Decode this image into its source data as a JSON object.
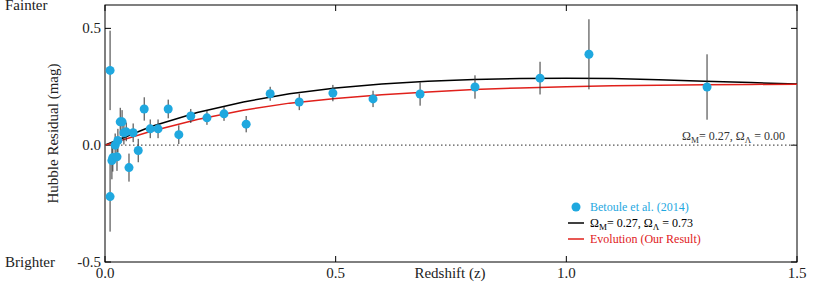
{
  "chart_data": {
    "type": "scatter",
    "x_label": "Redshift (z)",
    "y_label": "Hubble Residual (mag)",
    "annotations": [
      "Fainter",
      "Brighter"
    ],
    "xlim": [
      0,
      1.5
    ],
    "ylim": [
      -0.5,
      0.6
    ],
    "xticks": [
      {
        "value": 0,
        "label": "0.0"
      },
      0.5,
      {
        "value": 1,
        "label": "1.0"
      },
      1.5
    ],
    "yticks": [
      -0.5,
      {
        "value": 0,
        "label": "0.0"
      },
      0.5
    ],
    "grid": false,
    "legend": "lower right",
    "series": [
      {
        "name": "Betoule et al. (2014)",
        "type": "scatter",
        "marker": "circle",
        "color": "#1fa8df",
        "x": [
          0.011,
          0.011,
          0.015,
          0.017,
          0.022,
          0.026,
          0.028,
          0.033,
          0.037,
          0.041,
          0.046,
          0.052,
          0.061,
          0.072,
          0.085,
          0.098,
          0.115,
          0.137,
          0.16,
          0.186,
          0.221,
          0.258,
          0.306,
          0.358,
          0.421,
          0.494,
          0.581,
          0.683,
          0.802,
          0.943,
          1.049,
          1.305
        ],
        "values": [
          0.32,
          -0.22,
          -0.066,
          -0.053,
          0.0,
          -0.05,
          0.02,
          0.1,
          0.1,
          0.053,
          0.057,
          -0.096,
          0.053,
          -0.023,
          0.155,
          0.07,
          0.07,
          0.155,
          0.045,
          0.125,
          0.117,
          0.134,
          0.09,
          0.22,
          0.185,
          0.223,
          0.198,
          0.219,
          0.249,
          0.287,
          0.389,
          0.249
        ],
        "errors": [
          0.17,
          0.15,
          0.08,
          0.06,
          0.05,
          0.06,
          0.05,
          0.06,
          0.05,
          0.05,
          0.04,
          0.06,
          0.04,
          0.05,
          0.05,
          0.04,
          0.04,
          0.04,
          0.04,
          0.03,
          0.03,
          0.03,
          0.035,
          0.03,
          0.035,
          0.035,
          0.035,
          0.05,
          0.05,
          0.07,
          0.15,
          0.14
        ]
      },
      {
        "name": "ΩM= 0.27, ΩΛ = 0.73",
        "type": "line",
        "line_style": "solid",
        "color": "#000000",
        "x": [
          0,
          0.1,
          0.2,
          0.3,
          0.4,
          0.5,
          0.6,
          0.7,
          0.8,
          0.9,
          1.0,
          1.1,
          1.2,
          1.3,
          1.4,
          1.5
        ],
        "values": [
          0,
          0.08,
          0.14,
          0.185,
          0.22,
          0.245,
          0.262,
          0.274,
          0.281,
          0.285,
          0.286,
          0.285,
          0.28,
          0.274,
          0.268,
          0.262
        ]
      },
      {
        "name": "Evolution (Our Result)",
        "type": "line",
        "line_style": "solid",
        "color": "#e0201b",
        "x": [
          0,
          0.1,
          0.2,
          0.3,
          0.4,
          0.5,
          0.6,
          0.7,
          0.8,
          0.9,
          1.0,
          1.1,
          1.2,
          1.3,
          1.4,
          1.5
        ],
        "values": [
          0,
          0.06,
          0.11,
          0.15,
          0.18,
          0.2,
          0.216,
          0.228,
          0.238,
          0.245,
          0.25,
          0.254,
          0.257,
          0.259,
          0.26,
          0.261
        ]
      },
      {
        "name": "ΩM= 0.27, ΩΛ = 0.00",
        "type": "line",
        "line_style": "dotted",
        "color": "#555555",
        "x": [
          0,
          1.5
        ],
        "values": [
          0,
          0
        ]
      }
    ]
  }
}
